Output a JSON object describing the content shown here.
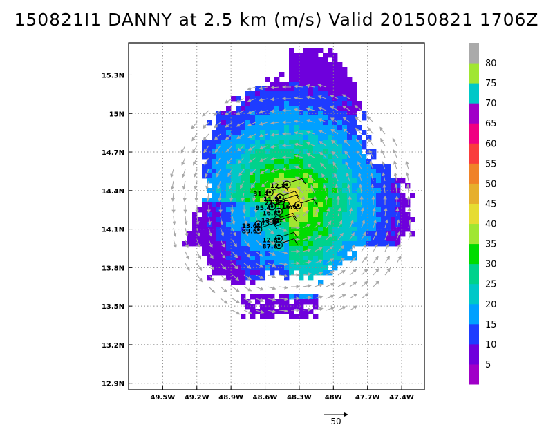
{
  "title": "150821I1 DANNY at 2.5 km (m/s) Valid 20150821  1706Z",
  "map": {
    "lon_range": [
      -49.8,
      -47.2
    ],
    "lat_range": [
      12.85,
      15.55
    ],
    "lon_ticks": [
      -49.5,
      -49.2,
      -48.9,
      -48.6,
      -48.3,
      -48.0,
      -47.7,
      -47.4
    ],
    "lon_tick_labels": [
      "49.5W",
      "49.2W",
      "48.9W",
      "48.6W",
      "48.3W",
      "48W",
      "47.7W",
      "47.4W"
    ],
    "lat_ticks": [
      12.9,
      13.2,
      13.5,
      13.8,
      14.1,
      14.4,
      14.7,
      15.0,
      15.3
    ],
    "lat_tick_labels": [
      "12.9N",
      "13.2N",
      "13.5N",
      "13.8N",
      "14.1N",
      "14.4N",
      "14.7N",
      "15N",
      "15.3N"
    ],
    "grid": true,
    "wind_field_center": [
      -48.38,
      14.3
    ],
    "wind_vector_color": "#a8a8a8"
  },
  "colorbar": {
    "levels": [
      5,
      10,
      15,
      20,
      25,
      30,
      35,
      40,
      45,
      50,
      55,
      60,
      65,
      70,
      75,
      80
    ],
    "labels": [
      "5",
      "10",
      "15",
      "20",
      "25",
      "30",
      "35",
      "40",
      "45",
      "50",
      "55",
      "60",
      "65",
      "70",
      "75",
      "80"
    ],
    "colors": [
      "#a000c8",
      "#6e00dc",
      "#1e3cff",
      "#00a0ff",
      "#00c8c8",
      "#00d28c",
      "#00dc00",
      "#a0e632",
      "#e6dc32",
      "#e6af2d",
      "#f08228",
      "#fa3c3c",
      "#f00082",
      "#a000c8",
      "#00c8c8",
      "#a0e632",
      "#aaaaaa"
    ]
  },
  "observations": [
    {
      "label": "12.8",
      "lon": -48.47,
      "lat": 14.43
    },
    {
      "label": "31.4",
      "lon": -48.62,
      "lat": 14.37
    },
    {
      "label": "11.9",
      "lon": -48.53,
      "lat": 14.33
    },
    {
      "label": "21.0",
      "lon": -48.52,
      "lat": 14.3
    },
    {
      "label": "95.4",
      "lon": -48.6,
      "lat": 14.26
    },
    {
      "label": "16.6",
      "lon": -48.37,
      "lat": 14.27
    },
    {
      "label": "16.8",
      "lon": -48.54,
      "lat": 14.22
    },
    {
      "label": "13.6",
      "lon": -48.55,
      "lat": 14.16
    },
    {
      "label": "13.9",
      "lon": -48.55,
      "lat": 14.14
    },
    {
      "label": "13.0",
      "lon": -48.72,
      "lat": 14.12
    },
    {
      "label": "89.6",
      "lon": -48.72,
      "lat": 14.08
    },
    {
      "label": "12.8",
      "lon": -48.54,
      "lat": 14.01
    },
    {
      "label": "87.6",
      "lon": -48.54,
      "lat": 13.96
    }
  ],
  "reference_vector": {
    "label": "50"
  }
}
